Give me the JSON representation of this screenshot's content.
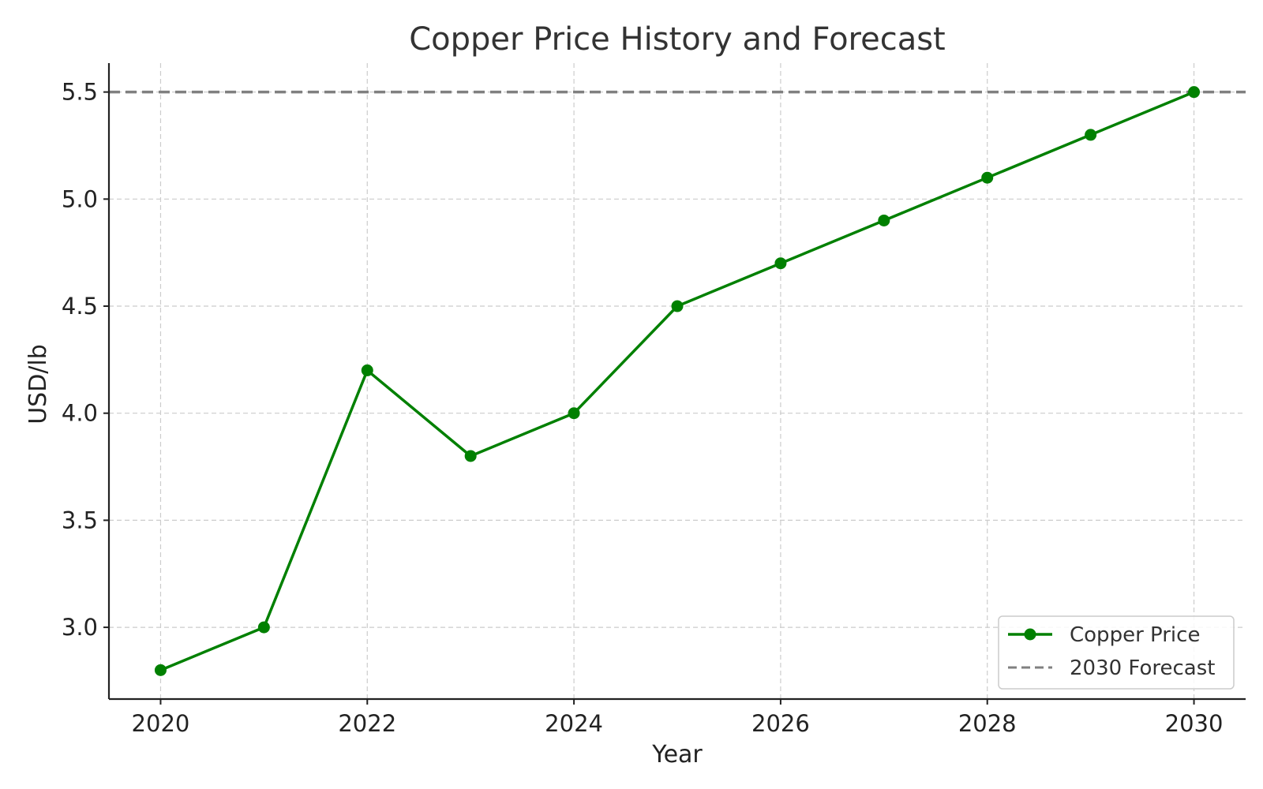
{
  "chart_data": {
    "type": "line",
    "title": "Copper Price History and Forecast",
    "xlabel": "Year",
    "ylabel": "USD/lb",
    "x": [
      2020,
      2021,
      2022,
      2023,
      2024,
      2025,
      2026,
      2027,
      2028,
      2029,
      2030
    ],
    "series": [
      {
        "name": "Copper Price",
        "values": [
          2.8,
          3.0,
          4.2,
          3.8,
          4.0,
          4.5,
          4.7,
          4.9,
          5.1,
          5.3,
          5.5
        ],
        "color": "#008000",
        "marker": "circle"
      }
    ],
    "reference_lines": [
      {
        "name": "2030 Forecast",
        "orientation": "horizontal",
        "value": 5.5,
        "color": "#808080",
        "style": "dashed"
      }
    ],
    "xlim": [
      2019.5,
      2030.5
    ],
    "ylim": [
      2.665,
      5.635
    ],
    "x_ticks": [
      2020,
      2022,
      2024,
      2026,
      2028,
      2030
    ],
    "y_ticks": [
      3.0,
      3.5,
      4.0,
      4.5,
      5.0,
      5.5
    ],
    "x_tick_labels": [
      "2020",
      "2022",
      "2024",
      "2026",
      "2028",
      "2030"
    ],
    "y_tick_labels": [
      "3.0",
      "3.5",
      "4.0",
      "4.5",
      "5.0",
      "5.5"
    ],
    "grid": true,
    "legend": {
      "position": "bottom-right",
      "entries": [
        "Copper Price",
        "2030 Forecast"
      ]
    }
  }
}
